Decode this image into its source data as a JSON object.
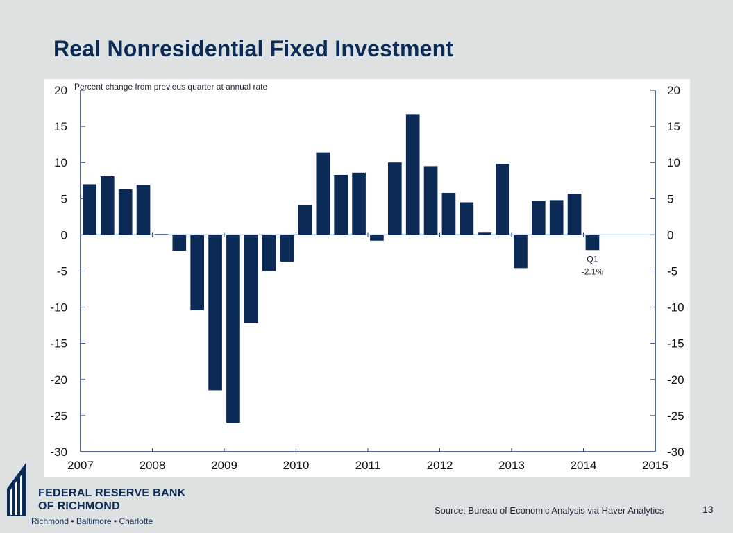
{
  "slide": {
    "title": "Real Nonresidential Fixed Investment",
    "source": "Source: Bureau of Economic Analysis via Haver Analytics",
    "page_number": "13"
  },
  "logo": {
    "line1": "FEDERAL RESERVE BANK",
    "line2": "OF RICHMOND",
    "line3": "Richmond • Baltimore • Charlotte"
  },
  "colors": {
    "bar": "#0b2a56",
    "title": "#0b2a56",
    "axis": "#1f3a63",
    "background": "#dde1e2"
  },
  "chart_data": {
    "type": "bar",
    "subtitle": "Percent change from previous quarter at annual rate",
    "ylim": [
      -30,
      20
    ],
    "yticks": [
      20,
      15,
      10,
      5,
      0,
      -5,
      -10,
      -15,
      -20,
      -25,
      -30
    ],
    "dual_y_axis": true,
    "grid": false,
    "x_labels": [
      "2007",
      "2008",
      "2009",
      "2010",
      "2011",
      "2012",
      "2013",
      "2014",
      "2015"
    ],
    "quarters": [
      "2007Q1",
      "2007Q2",
      "2007Q3",
      "2007Q4",
      "2008Q1",
      "2008Q2",
      "2008Q3",
      "2008Q4",
      "2009Q1",
      "2009Q2",
      "2009Q3",
      "2009Q4",
      "2010Q1",
      "2010Q2",
      "2010Q3",
      "2010Q4",
      "2011Q1",
      "2011Q2",
      "2011Q3",
      "2011Q4",
      "2012Q1",
      "2012Q2",
      "2012Q3",
      "2012Q4",
      "2013Q1",
      "2013Q2",
      "2013Q3",
      "2013Q4",
      "2014Q1"
    ],
    "values": [
      7.0,
      8.1,
      6.3,
      6.9,
      0.1,
      -2.2,
      -10.4,
      -21.5,
      -26.0,
      -12.2,
      -5.0,
      -3.7,
      4.1,
      11.4,
      8.3,
      8.6,
      -0.8,
      10.0,
      16.7,
      9.5,
      5.8,
      4.5,
      0.3,
      9.8,
      -4.6,
      4.7,
      4.8,
      5.7,
      -2.1
    ],
    "annotation": {
      "line1": "Q1",
      "line2": "-2.1%",
      "at_quarter": "2014Q1"
    }
  }
}
